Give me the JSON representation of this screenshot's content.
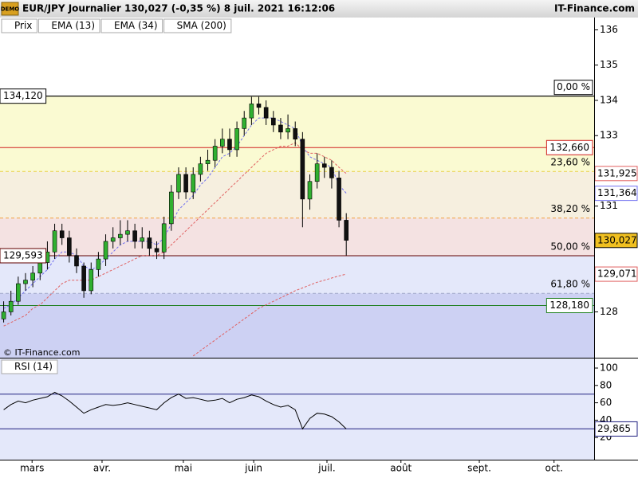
{
  "header": {
    "title": "EUR/JPY Journalier 130,027 (-0,35 %) 8 juil. 2021 16:12:06",
    "source": "IT-Finance.com",
    "badge": "DEMO"
  },
  "chart_data": [
    {
      "type": "candlestick",
      "watermark": "© IT-Finance.com",
      "x": [
        1,
        3,
        5,
        7,
        9,
        11,
        13,
        15,
        17,
        19,
        21,
        23,
        25,
        27,
        29,
        31,
        33,
        35,
        37,
        39,
        41,
        43,
        45,
        47,
        49,
        51,
        53,
        55,
        57,
        59,
        61,
        63,
        65,
        67,
        69,
        71,
        73,
        75,
        77,
        79,
        81,
        83,
        85,
        87,
        89,
        91,
        93,
        95
      ],
      "xlim": [
        0,
        163
      ],
      "ylim": [
        126.7,
        136.35
      ],
      "yticks": [
        128,
        131,
        133,
        134,
        135,
        136
      ],
      "series": [
        {
          "name": "Prix",
          "color": "#30b030",
          "down_color": "#111111",
          "open": [
            127.8,
            128.0,
            128.3,
            128.8,
            128.9,
            129.1,
            129.4,
            129.7,
            130.3,
            130.1,
            129.6,
            129.3,
            128.6,
            129.2,
            129.5,
            130.0,
            130.1,
            130.2,
            130.3,
            130.0,
            130.1,
            129.8,
            129.7,
            130.5,
            131.4,
            131.9,
            131.4,
            131.9,
            132.2,
            132.3,
            132.7,
            132.9,
            132.6,
            133.2,
            133.5,
            133.9,
            133.8,
            133.5,
            133.3,
            133.1,
            133.2,
            132.9,
            131.2,
            131.7,
            132.2,
            132.1,
            131.8,
            130.6
          ],
          "high": [
            128.3,
            128.6,
            129.0,
            129.1,
            129.3,
            129.6,
            130.0,
            130.5,
            130.5,
            130.3,
            129.8,
            129.4,
            129.4,
            129.7,
            130.2,
            130.4,
            130.6,
            130.6,
            130.5,
            130.4,
            130.3,
            130.0,
            130.7,
            131.6,
            132.1,
            132.1,
            132.1,
            132.4,
            132.6,
            132.9,
            133.2,
            133.2,
            133.4,
            133.7,
            134.1,
            134.1,
            134.0,
            133.7,
            133.5,
            133.6,
            133.4,
            133.1,
            131.9,
            132.5,
            132.4,
            132.3,
            132.0,
            130.8
          ],
          "low": [
            127.7,
            127.9,
            128.2,
            128.6,
            128.7,
            128.9,
            129.2,
            129.5,
            129.9,
            129.4,
            129.1,
            128.4,
            128.5,
            129.0,
            129.3,
            129.8,
            129.9,
            130.0,
            129.8,
            129.8,
            129.6,
            129.5,
            129.5,
            130.3,
            131.2,
            131.2,
            131.2,
            131.7,
            132.0,
            132.1,
            132.5,
            132.4,
            132.4,
            133.0,
            133.3,
            133.6,
            133.3,
            133.1,
            132.9,
            132.9,
            132.7,
            130.4,
            130.9,
            131.5,
            131.8,
            131.5,
            130.4,
            129.6
          ],
          "close": [
            128.0,
            128.3,
            128.8,
            128.9,
            129.1,
            129.4,
            129.7,
            130.3,
            130.1,
            129.6,
            129.3,
            128.6,
            129.2,
            129.5,
            130.0,
            130.1,
            130.2,
            130.3,
            130.0,
            130.1,
            129.8,
            129.7,
            130.5,
            131.4,
            131.9,
            131.4,
            131.9,
            132.2,
            132.3,
            132.7,
            132.9,
            132.6,
            133.2,
            133.5,
            133.9,
            133.8,
            133.5,
            133.3,
            133.1,
            133.2,
            132.9,
            131.2,
            131.7,
            132.2,
            132.1,
            131.8,
            130.6,
            130.03
          ]
        },
        {
          "name": "EMA (13)",
          "color": "#7070f0",
          "dash": true,
          "values": [
            128.1,
            128.2,
            128.4,
            128.6,
            128.8,
            129.0,
            129.2,
            129.5,
            129.7,
            129.7,
            129.6,
            129.3,
            129.2,
            129.3,
            129.5,
            129.7,
            129.9,
            130.0,
            130.0,
            130.0,
            130.0,
            129.9,
            130.1,
            130.5,
            130.9,
            131.1,
            131.3,
            131.6,
            131.8,
            132.1,
            132.4,
            132.5,
            132.7,
            133.0,
            133.3,
            133.5,
            133.5,
            133.5,
            133.4,
            133.3,
            133.2,
            132.7,
            132.4,
            132.3,
            132.2,
            132.1,
            131.6,
            131.364
          ]
        },
        {
          "name": "EMA (34)",
          "color": "#e06060",
          "dash": true,
          "values": [
            127.6,
            127.7,
            127.8,
            127.9,
            128.1,
            128.2,
            128.4,
            128.6,
            128.8,
            128.9,
            128.9,
            128.9,
            128.9,
            129.0,
            129.1,
            129.2,
            129.3,
            129.4,
            129.5,
            129.6,
            129.6,
            129.6,
            129.7,
            129.9,
            130.1,
            130.3,
            130.5,
            130.7,
            130.9,
            131.1,
            131.3,
            131.5,
            131.7,
            131.9,
            132.1,
            132.3,
            132.5,
            132.6,
            132.7,
            132.7,
            132.8,
            132.6,
            132.5,
            132.5,
            132.4,
            132.3,
            132.1,
            131.925
          ]
        },
        {
          "name": "SMA (200)",
          "color": "#e06060",
          "dash": true,
          "values": [
            null,
            null,
            null,
            null,
            null,
            null,
            null,
            null,
            null,
            null,
            null,
            null,
            null,
            null,
            null,
            null,
            null,
            null,
            null,
            null,
            null,
            null,
            null,
            null,
            null,
            null,
            126.75,
            126.9,
            127.05,
            127.2,
            127.35,
            127.5,
            127.65,
            127.8,
            127.95,
            128.1,
            128.2,
            128.3,
            128.4,
            128.5,
            128.6,
            128.68,
            128.76,
            128.84,
            128.9,
            128.96,
            129.02,
            129.071
          ]
        }
      ],
      "fibonacci": [
        {
          "value": 134.12,
          "label": "0,00 %",
          "color": "#000000",
          "fill": "#fafad2",
          "dash": false
        },
        {
          "value": 131.983,
          "label": "23,60 %",
          "color": "#e8d040",
          "fill": "#f6efdf",
          "dash": true
        },
        {
          "value": 130.661,
          "label": "38,20 %",
          "color": "#f0a040",
          "fill": "#f4e2e2",
          "dash": true
        },
        {
          "value": 129.593,
          "label": "50,00 %",
          "color": "#f08040",
          "fill": "#e4e8fa",
          "dash": false
        },
        {
          "value": 128.525,
          "label": "61,80 %",
          "color": "#a0a8c8",
          "fill": "#cdd1f3",
          "dash": true
        }
      ],
      "levels": [
        {
          "value": 134.12,
          "label": "134,120",
          "color": "#000000",
          "side": "left"
        },
        {
          "value": 132.66,
          "label": "132,660",
          "color": "#d02020",
          "side": "right"
        },
        {
          "value": 129.593,
          "label": "129,593",
          "color": "#600000",
          "side": "left"
        },
        {
          "value": 128.18,
          "label": "128,180",
          "color": "#208020",
          "side": "right"
        }
      ],
      "tags": [
        {
          "value": 131.925,
          "label": "131,925",
          "color": "#e06060"
        },
        {
          "value": 131.364,
          "label": "131,364",
          "color": "#7070f0"
        },
        {
          "value": 130.027,
          "label": "130,027",
          "color": "#000000",
          "fill": "#f0c020"
        },
        {
          "value": 129.071,
          "label": "129,071",
          "color": "#e06060"
        }
      ]
    },
    {
      "type": "line",
      "x": [
        1,
        3,
        5,
        7,
        9,
        11,
        13,
        15,
        17,
        19,
        21,
        23,
        25,
        27,
        29,
        31,
        33,
        35,
        37,
        39,
        41,
        43,
        45,
        47,
        49,
        51,
        53,
        55,
        57,
        59,
        61,
        63,
        65,
        67,
        69,
        71,
        73,
        75,
        77,
        79,
        81,
        83,
        85,
        87,
        89,
        91,
        93,
        95
      ],
      "xlim": [
        0,
        163
      ],
      "ylim": [
        -5.5,
        111
      ],
      "yticks": [
        20,
        40,
        60,
        80,
        100
      ],
      "xticks": [
        {
          "value": 8.8,
          "label": "mars"
        },
        {
          "value": 28,
          "label": "avr."
        },
        {
          "value": 50.3,
          "label": "mai"
        },
        {
          "value": 69.6,
          "label": "juin"
        },
        {
          "value": 89.7,
          "label": "juil."
        },
        {
          "value": 110,
          "label": "août"
        },
        {
          "value": 131.5,
          "label": "sept."
        },
        {
          "value": 152,
          "label": "oct."
        }
      ],
      "levels": [
        70,
        30
      ],
      "level_color": "#202080",
      "background": "#e4e8fa",
      "series": [
        {
          "name": "RSI (14)",
          "color": "#000000",
          "values": [
            52,
            58,
            62,
            60,
            63,
            65,
            67,
            72,
            68,
            62,
            55,
            48,
            52,
            55,
            58,
            57,
            58,
            60,
            58,
            56,
            54,
            52,
            60,
            66,
            70,
            65,
            66,
            64,
            62,
            63,
            65,
            60,
            64,
            66,
            69,
            67,
            62,
            58,
            55,
            57,
            52,
            30,
            42,
            48,
            47,
            44,
            38,
            29.865
          ]
        }
      ],
      "tags": [
        {
          "value": 29.865,
          "label": "29,865",
          "color": "#202080"
        }
      ]
    }
  ]
}
